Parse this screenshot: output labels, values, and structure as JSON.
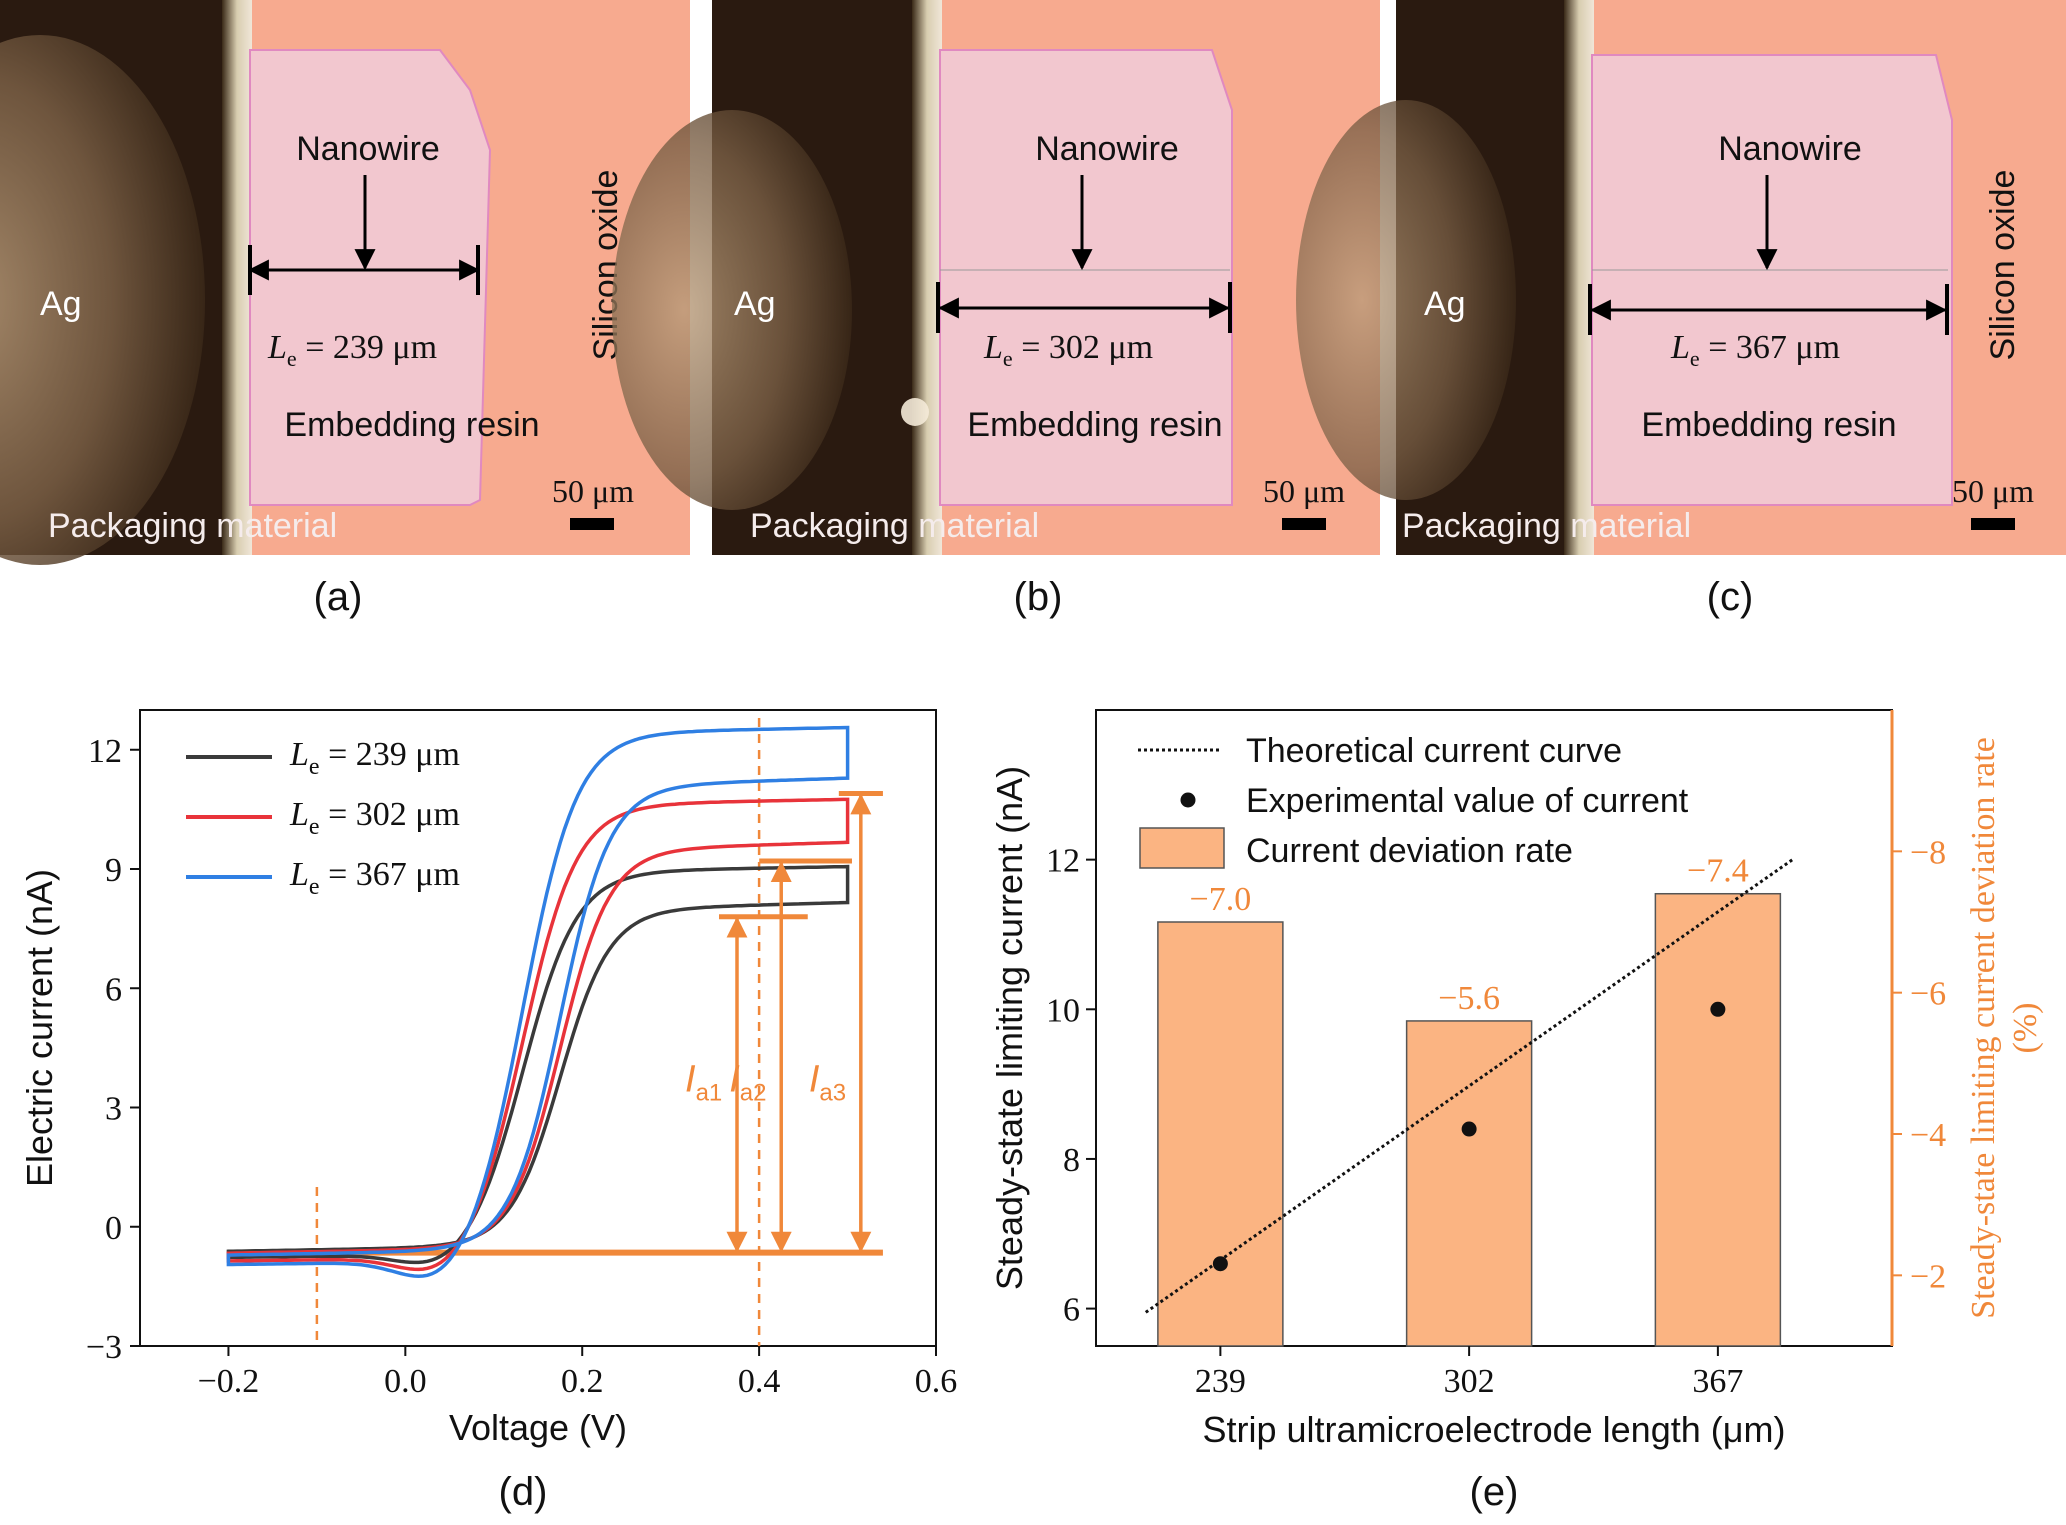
{
  "colors": {
    "black": "#3a3a3a",
    "red": "#e8333a",
    "blue": "#2f7fe3",
    "orange": "#f0883a",
    "bar_fill": "#fbb482",
    "substrate": "#f7aa8f",
    "resin": "#f2c7cf",
    "packaging_dark": "#2a1a10"
  },
  "micrographs": [
    {
      "panel": "(a)",
      "ag": "Ag",
      "nanowire": "Nanowire",
      "le_sym": "L",
      "le_sub": "e",
      "le_value": " = 239 μm",
      "resin": "Embedding resin",
      "silicon": "Silicon oxide",
      "packaging": "Packaging material",
      "scalebar": "50 μm"
    },
    {
      "panel": "(b)",
      "ag": "Ag",
      "nanowire": "Nanowire",
      "le_sym": "L",
      "le_sub": "e",
      "le_value": " = 302 μm",
      "resin": "Embedding resin",
      "silicon": "Silicon oxide",
      "packaging": "Packaging material",
      "scalebar": "50 μm"
    },
    {
      "panel": "(c)",
      "ag": "Ag",
      "nanowire": "Nanowire",
      "le_sym": "L",
      "le_sub": "e",
      "le_value": " = 367 μm",
      "resin": "Embedding resin",
      "silicon": "Silicon oxide",
      "packaging": "Packaging material",
      "scalebar": "50 μm"
    }
  ],
  "chart_data": [
    {
      "panel": "(d)",
      "type": "line",
      "xlabel": "Voltage (V)",
      "ylabel": "Electric current (nA)",
      "xlim": [
        -0.3,
        0.6
      ],
      "ylim": [
        -3,
        13
      ],
      "xticks": [
        -0.2,
        0.0,
        0.2,
        0.4,
        0.6
      ],
      "xtick_labels": [
        "−0.2",
        "0.0",
        "0.2",
        "0.4",
        "0.6"
      ],
      "yticks": [
        -3,
        0,
        3,
        6,
        9,
        12
      ],
      "ytick_labels": [
        "−3",
        "0",
        "3",
        "6",
        "9",
        "12"
      ],
      "legend_position": "top-left",
      "series": [
        {
          "name_sym": "L",
          "name_sub": "e",
          "name_value": " = 239 μm",
          "color": "#3a3a3a",
          "x_range": [
            -0.2,
            0.5
          ],
          "limiting_current": 7.8,
          "base_current": -0.65
        },
        {
          "name_sym": "L",
          "name_sub": "e",
          "name_value": " = 302 μm",
          "color": "#e8333a",
          "x_range": [
            -0.2,
            0.5
          ],
          "limiting_current": 9.3,
          "base_current": -0.7
        },
        {
          "name_sym": "L",
          "name_sub": "e",
          "name_value": " = 367 μm",
          "color": "#2f7fe3",
          "x_range": [
            -0.2,
            0.5
          ],
          "limiting_current": 10.9,
          "base_current": -0.75
        }
      ],
      "annotations": {
        "baseline_current": -0.65,
        "dashed_voltages": [
          -0.1,
          0.4
        ],
        "arrows": [
          {
            "label_main": "I",
            "label_sub": "a1",
            "x": 0.375,
            "top": 7.8
          },
          {
            "label_main": "I",
            "label_sub": "a2",
            "x": 0.425,
            "top": 9.2
          },
          {
            "label_main": "I",
            "label_sub": "a3",
            "x": 0.515,
            "top": 10.9
          }
        ]
      }
    },
    {
      "panel": "(e)",
      "type": "bar",
      "xlabel": "Strip ultramicroelectrode length (μm)",
      "ylabel": "Steady-state limiting current (nA)",
      "ylabel_right_line1": "Steady-state limiting current  deviation rate",
      "ylabel_right_line2": "(%)",
      "categories": [
        "239",
        "302",
        "367"
      ],
      "ylim_left": [
        5.5,
        14
      ],
      "yticks_left": [
        6,
        8,
        10,
        12
      ],
      "ylim_right": [
        -1,
        -10
      ],
      "yticks_right": [
        -2,
        -4,
        -6,
        -8
      ],
      "ytick_labels_right": [
        "−2",
        "−4",
        "−6",
        "−8"
      ],
      "legend_position": "top-left",
      "legend": [
        "Theoretical current curve",
        "Experimental value of current",
        "Current deviation rate"
      ],
      "bars_deviation_rate_percent": [
        -7.0,
        -5.6,
        -7.4
      ],
      "bar_labels": [
        "−7.0",
        "−5.6",
        "−7.4"
      ],
      "experimental_current_nA": [
        6.6,
        8.4,
        10.0
      ],
      "theoretical_line": {
        "x_start": 0.7,
        "y_start": 5.95,
        "x_end": 3.3,
        "y_end": 12.0
      }
    }
  ]
}
